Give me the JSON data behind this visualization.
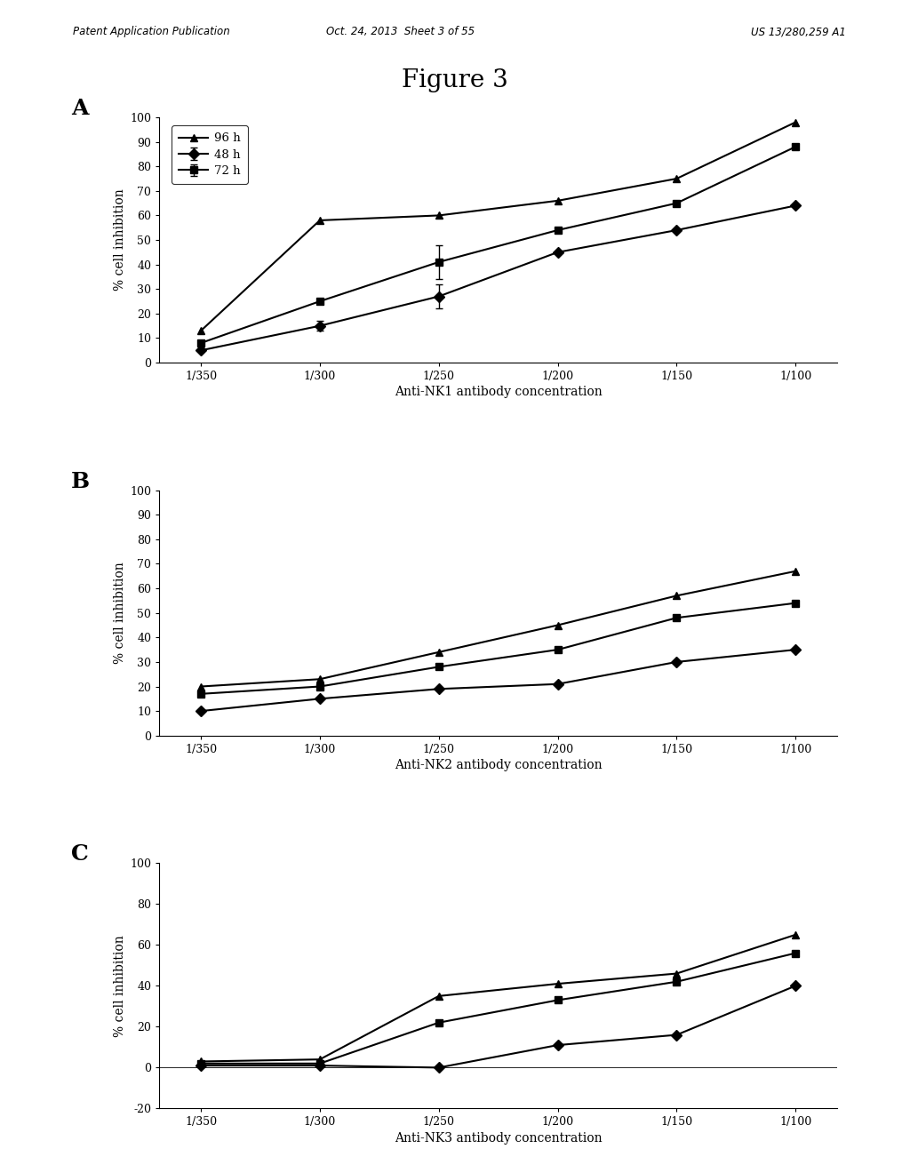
{
  "figure_title": "Figure 3",
  "header_left": "Patent Application Publication",
  "header_center": "Oct. 24, 2013  Sheet 3 of 55",
  "header_right": "US 13/280,259 A1",
  "x_labels": [
    "1/350",
    "1/300",
    "1/250",
    "1/200",
    "1/150",
    "1/100"
  ],
  "x_positions": [
    0,
    1,
    2,
    3,
    4,
    5
  ],
  "panel_A": {
    "label": "A",
    "xlabel": "Anti-NK1 antibody concentration",
    "ylabel": "% cell inhibition",
    "ylim": [
      0,
      100
    ],
    "yticks": [
      0,
      10,
      20,
      30,
      40,
      50,
      60,
      70,
      80,
      90,
      100
    ],
    "series": [
      {
        "label": "48 h",
        "marker": "D",
        "values": [
          5,
          15,
          27,
          45,
          54,
          64
        ],
        "yerr": [
          null,
          2,
          5,
          null,
          null,
          null
        ]
      },
      {
        "label": "72 h",
        "marker": "s",
        "values": [
          8,
          25,
          41,
          54,
          65,
          88
        ],
        "yerr": [
          null,
          null,
          7,
          null,
          null,
          null
        ]
      },
      {
        "label": "96 h",
        "marker": "^",
        "values": [
          13,
          58,
          60,
          66,
          75,
          98
        ],
        "yerr": [
          null,
          null,
          null,
          null,
          null,
          null
        ]
      }
    ]
  },
  "panel_B": {
    "label": "B",
    "xlabel": "Anti-NK2 antibody concentration",
    "ylabel": "% cell inhibition",
    "ylim": [
      0,
      100
    ],
    "yticks": [
      0,
      10,
      20,
      30,
      40,
      50,
      60,
      70,
      80,
      90,
      100
    ],
    "series": [
      {
        "label": "48 h",
        "marker": "D",
        "values": [
          10,
          15,
          19,
          21,
          30,
          35
        ]
      },
      {
        "label": "72 h",
        "marker": "s",
        "values": [
          17,
          20,
          28,
          35,
          48,
          54
        ]
      },
      {
        "label": "96 h",
        "marker": "^",
        "values": [
          20,
          23,
          34,
          45,
          57,
          67
        ]
      }
    ]
  },
  "panel_C": {
    "label": "C",
    "xlabel": "Anti-NK3 antibody concentration",
    "ylabel": "% cell inhibition",
    "ylim": [
      -20,
      100
    ],
    "yticks": [
      -20,
      0,
      20,
      40,
      60,
      80,
      100
    ],
    "series": [
      {
        "label": "48 h",
        "marker": "D",
        "values": [
          1,
          1,
          0,
          11,
          16,
          40
        ]
      },
      {
        "label": "72 h",
        "marker": "s",
        "values": [
          2,
          2,
          22,
          33,
          42,
          56
        ]
      },
      {
        "label": "96 h",
        "marker": "^",
        "values": [
          3,
          4,
          35,
          41,
          46,
          65
        ]
      }
    ]
  },
  "line_color": "#000000",
  "bg_color": "#ffffff",
  "font_family": "DejaVu Serif"
}
